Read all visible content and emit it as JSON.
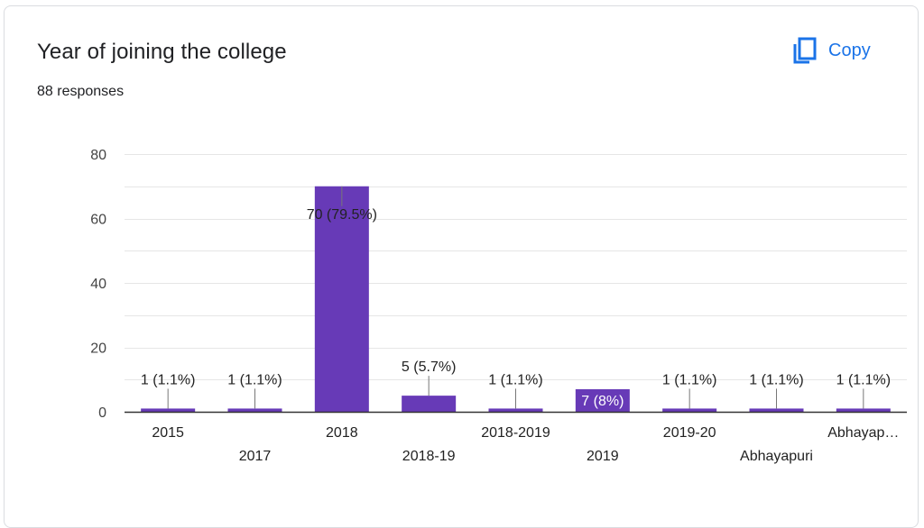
{
  "card": {
    "title": "Year of joining the college",
    "responses": "88 responses",
    "copy_label": "Copy",
    "copy_icon": "copy-icon"
  },
  "colors": {
    "bar": "#673ab7",
    "accent": "#1a73e8",
    "grid": "#e6e6e6",
    "text": "#202124"
  },
  "chart_data": {
    "type": "bar",
    "title": "",
    "xlabel": "",
    "ylabel": "",
    "ylim": [
      0,
      80
    ],
    "yticks": [
      0,
      20,
      40,
      60,
      80
    ],
    "categories": [
      "2015",
      "2017",
      "2018",
      "2018-19",
      "2018-2019",
      "2019",
      "2019-20",
      "Abhayapuri",
      "Abhayap…"
    ],
    "values": [
      1,
      1,
      70,
      5,
      1,
      7,
      1,
      1,
      1
    ],
    "labels": [
      "1 (1.1%)",
      "1 (1.1%)",
      "70 (79.5%)",
      "5 (5.7%)",
      "1 (1.1%)",
      "7 (8%)",
      "1 (1.1%)",
      "1 (1.1%)",
      "1 (1.1%)"
    ]
  }
}
